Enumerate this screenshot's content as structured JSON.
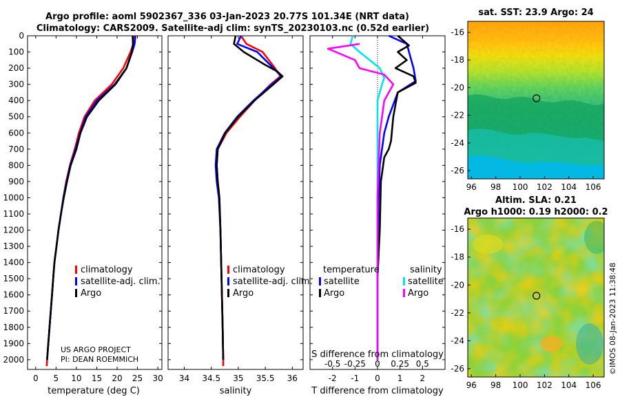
{
  "title_line1": "Argo profile: aoml 5902367_336 03-Jan-2023 20.77S 101.34E (NRT data)",
  "title_line2": "Climatology: CARS2009. Satellite-adj clim: synTS_20230103.nc (0.52d earlier)",
  "credit_line1": "US ARGO PROJECT",
  "credit_line2": "PI: DEAN ROEMMICH",
  "imos_stamp": "©IMOS 08-Jan-2023 11:38:48",
  "colors": {
    "climatology": "#ff0000",
    "satellite_adj": "#0000ff",
    "argo": "#000000",
    "sat_salinity": "#00e5ee",
    "argo_salinity": "#ff00ff"
  },
  "chart_data": [
    {
      "type": "line",
      "id": "temperature",
      "xlabel": "temperature (deg C)",
      "ylabel": "",
      "xlim": [
        -2,
        31
      ],
      "ylim": [
        2060,
        0
      ],
      "xticks": [
        0,
        5,
        10,
        15,
        20,
        25,
        30
      ],
      "yticks": [
        0,
        100,
        200,
        300,
        400,
        500,
        600,
        700,
        800,
        900,
        1000,
        1100,
        1200,
        1300,
        1400,
        1500,
        1600,
        1700,
        1800,
        1900,
        2000
      ],
      "legend": [
        "climatology",
        "satellite-adj. clim.",
        "Argo"
      ],
      "series": [
        {
          "name": "climatology",
          "color": "#ff0000",
          "points": [
            [
              24.2,
              0
            ],
            [
              24.0,
              50
            ],
            [
              23.3,
              100
            ],
            [
              21.5,
              200
            ],
            [
              18.7,
              300
            ],
            [
              14.5,
              400
            ],
            [
              12.0,
              500
            ],
            [
              10.6,
              600
            ],
            [
              9.6,
              700
            ],
            [
              8.4,
              800
            ],
            [
              7.5,
              900
            ],
            [
              6.8,
              1000
            ],
            [
              6.2,
              1100
            ],
            [
              5.6,
              1200
            ],
            [
              5.1,
              1300
            ],
            [
              4.6,
              1400
            ],
            [
              4.3,
              1500
            ],
            [
              4.0,
              1600
            ],
            [
              3.7,
              1700
            ],
            [
              3.4,
              1800
            ],
            [
              3.1,
              1900
            ],
            [
              2.8,
              2000
            ],
            [
              2.7,
              2040
            ]
          ]
        },
        {
          "name": "satellite-adj. clim.",
          "color": "#0000ff",
          "points": [
            [
              24.5,
              0
            ],
            [
              24.3,
              50
            ],
            [
              23.7,
              100
            ],
            [
              22.3,
              200
            ],
            [
              19.4,
              300
            ],
            [
              15.0,
              400
            ],
            [
              12.3,
              500
            ],
            [
              10.9,
              600
            ],
            [
              9.8,
              700
            ],
            [
              8.5,
              800
            ],
            [
              7.6,
              900
            ],
            [
              6.8,
              1000
            ],
            [
              6.2,
              1100
            ],
            [
              5.6,
              1200
            ],
            [
              5.1,
              1300
            ],
            [
              4.6,
              1400
            ],
            [
              4.3,
              1500
            ],
            [
              4.0,
              1600
            ],
            [
              3.7,
              1700
            ],
            [
              3.4,
              1800
            ],
            [
              3.1,
              1900
            ],
            [
              2.8,
              2000
            ]
          ]
        },
        {
          "name": "Argo",
          "color": "#000000",
          "points": [
            [
              23.8,
              0
            ],
            [
              23.9,
              50
            ],
            [
              23.6,
              100
            ],
            [
              22.3,
              200
            ],
            [
              19.6,
              300
            ],
            [
              15.5,
              400
            ],
            [
              12.6,
              500
            ],
            [
              11.0,
              600
            ],
            [
              10.0,
              700
            ],
            [
              8.6,
              800
            ],
            [
              7.7,
              900
            ],
            [
              6.9,
              1000
            ],
            [
              6.2,
              1100
            ],
            [
              5.6,
              1200
            ],
            [
              5.1,
              1300
            ],
            [
              4.6,
              1400
            ],
            [
              4.3,
              1500
            ],
            [
              4.0,
              1600
            ],
            [
              3.7,
              1700
            ],
            [
              3.4,
              1800
            ],
            [
              3.1,
              1900
            ],
            [
              2.8,
              2000
            ]
          ]
        }
      ]
    },
    {
      "type": "line",
      "id": "salinity",
      "xlabel": "salinity",
      "xlim": [
        33.7,
        36.2
      ],
      "ylim": [
        2060,
        0
      ],
      "xticks": [
        34,
        34.5,
        35,
        35.5,
        36
      ],
      "legend": [
        "climatology",
        "satellite-adj. clim.",
        "Argo"
      ],
      "series": [
        {
          "name": "climatology",
          "color": "#ff0000",
          "points": [
            [
              35.05,
              0
            ],
            [
              35.15,
              50
            ],
            [
              35.45,
              100
            ],
            [
              35.68,
              200
            ],
            [
              35.78,
              250
            ],
            [
              35.6,
              300
            ],
            [
              35.3,
              400
            ],
            [
              35.03,
              500
            ],
            [
              34.78,
              600
            ],
            [
              34.62,
              700
            ],
            [
              34.6,
              800
            ],
            [
              34.62,
              900
            ],
            [
              34.65,
              1000
            ],
            [
              34.67,
              1200
            ],
            [
              34.69,
              1500
            ],
            [
              34.71,
              1800
            ],
            [
              34.72,
              2000
            ],
            [
              34.72,
              2040
            ]
          ]
        },
        {
          "name": "satellite-adj. clim.",
          "color": "#0000ff",
          "points": [
            [
              35.05,
              0
            ],
            [
              34.98,
              50
            ],
            [
              35.35,
              100
            ],
            [
              35.65,
              200
            ],
            [
              35.8,
              250
            ],
            [
              35.62,
              300
            ],
            [
              35.28,
              400
            ],
            [
              34.98,
              500
            ],
            [
              34.75,
              600
            ],
            [
              34.6,
              700
            ],
            [
              34.58,
              800
            ],
            [
              34.6,
              900
            ],
            [
              34.64,
              1000
            ],
            [
              34.67,
              1200
            ],
            [
              34.69,
              1500
            ],
            [
              34.71,
              1800
            ],
            [
              34.72,
              2000
            ]
          ]
        },
        {
          "name": "Argo",
          "color": "#000000",
          "points": [
            [
              34.95,
              0
            ],
            [
              34.92,
              50
            ],
            [
              35.1,
              100
            ],
            [
              35.5,
              180
            ],
            [
              35.72,
              220
            ],
            [
              35.82,
              250
            ],
            [
              35.65,
              300
            ],
            [
              35.3,
              400
            ],
            [
              35.0,
              500
            ],
            [
              34.76,
              600
            ],
            [
              34.62,
              700
            ],
            [
              34.6,
              800
            ],
            [
              34.62,
              900
            ],
            [
              34.65,
              1000
            ],
            [
              34.67,
              1200
            ],
            [
              34.69,
              1500
            ],
            [
              34.71,
              1800
            ],
            [
              34.72,
              2000
            ]
          ]
        }
      ]
    },
    {
      "type": "line",
      "id": "difference",
      "xlabel": "T difference from climatology",
      "xlabel2": "S difference from climatology",
      "xlim": [
        -3,
        3
      ],
      "ylim": [
        2060,
        0
      ],
      "xticks": [
        -2,
        -1,
        0,
        1,
        2
      ],
      "xticks_s_labels": [
        "-0.5",
        "-0.25",
        "0",
        "0.25",
        "0.5"
      ],
      "legend_temperature_title": "temperature",
      "legend_salinity_title": "salinity",
      "legend_temperature": [
        "satellite",
        "Argo"
      ],
      "legend_salinity": [
        "satellite",
        "Argo"
      ],
      "series": [
        {
          "name": "temperature satellite",
          "color": "#0000ff",
          "points": [
            [
              0.5,
              0
            ],
            [
              1.3,
              50
            ],
            [
              1.4,
              100
            ],
            [
              1.6,
              200
            ],
            [
              1.7,
              280
            ],
            [
              0.9,
              350
            ],
            [
              0.5,
              500
            ],
            [
              0.3,
              600
            ],
            [
              0.2,
              700
            ],
            [
              0.1,
              800
            ],
            [
              0.05,
              1000
            ],
            [
              0.0,
              1500
            ],
            [
              0.0,
              2000
            ]
          ]
        },
        {
          "name": "temperature Argo",
          "color": "#000000",
          "points": [
            [
              0.9,
              0
            ],
            [
              1.4,
              60
            ],
            [
              0.9,
              100
            ],
            [
              1.3,
              150
            ],
            [
              0.8,
              200
            ],
            [
              1.6,
              250
            ],
            [
              1.7,
              290
            ],
            [
              0.9,
              350
            ],
            [
              0.7,
              500
            ],
            [
              0.6,
              650
            ],
            [
              0.5,
              700
            ],
            [
              0.3,
              750
            ],
            [
              0.15,
              900
            ],
            [
              0.1,
              1200
            ],
            [
              0.0,
              1500
            ],
            [
              0.0,
              2000
            ]
          ]
        },
        {
          "name": "salinity satellite",
          "color": "#00e5ee",
          "points": [
            [
              -1.1,
              0
            ],
            [
              -1.2,
              50
            ],
            [
              -0.8,
              100
            ],
            [
              0.1,
              200
            ],
            [
              0.3,
              260
            ],
            [
              0.2,
              300
            ],
            [
              0.0,
              400
            ],
            [
              0.0,
              600
            ],
            [
              0.0,
              800
            ],
            [
              0.0,
              1000
            ],
            [
              0.0,
              1500
            ],
            [
              0.0,
              2000
            ]
          ]
        },
        {
          "name": "salinity Argo",
          "color": "#ff00ff",
          "points": [
            [
              -0.8,
              50
            ],
            [
              -2.2,
              80
            ],
            [
              -1.0,
              150
            ],
            [
              -0.8,
              200
            ],
            [
              0.3,
              240
            ],
            [
              0.7,
              300
            ],
            [
              0.3,
              400
            ],
            [
              0.1,
              600
            ],
            [
              0.05,
              800
            ],
            [
              0.0,
              1000
            ],
            [
              0.0,
              1500
            ],
            [
              0.0,
              2000
            ]
          ]
        }
      ]
    },
    {
      "type": "heatmap",
      "id": "sst_map",
      "title": "sat. SST: 23.9 Argo: 24",
      "xticks": [
        96,
        98,
        100,
        102,
        104,
        106
      ],
      "yticks": [
        -16,
        -18,
        -20,
        -22,
        -24,
        -26
      ],
      "xlim": [
        95.7,
        106.9
      ],
      "ylim": [
        -26.6,
        -15.2
      ],
      "marker": [
        101.34,
        -20.77
      ]
    },
    {
      "type": "heatmap",
      "id": "sla_map",
      "title_line1": "Altim. SLA: 0.21",
      "title_line2": "Argo h1000: 0.19 h2000: 0.2",
      "xticks": [
        96,
        98,
        100,
        102,
        104,
        106
      ],
      "yticks": [
        -16,
        -18,
        -20,
        -22,
        -24,
        -26
      ],
      "xlim": [
        95.7,
        106.9
      ],
      "ylim": [
        -26.6,
        -15.2
      ],
      "marker": [
        101.34,
        -20.77
      ]
    }
  ]
}
